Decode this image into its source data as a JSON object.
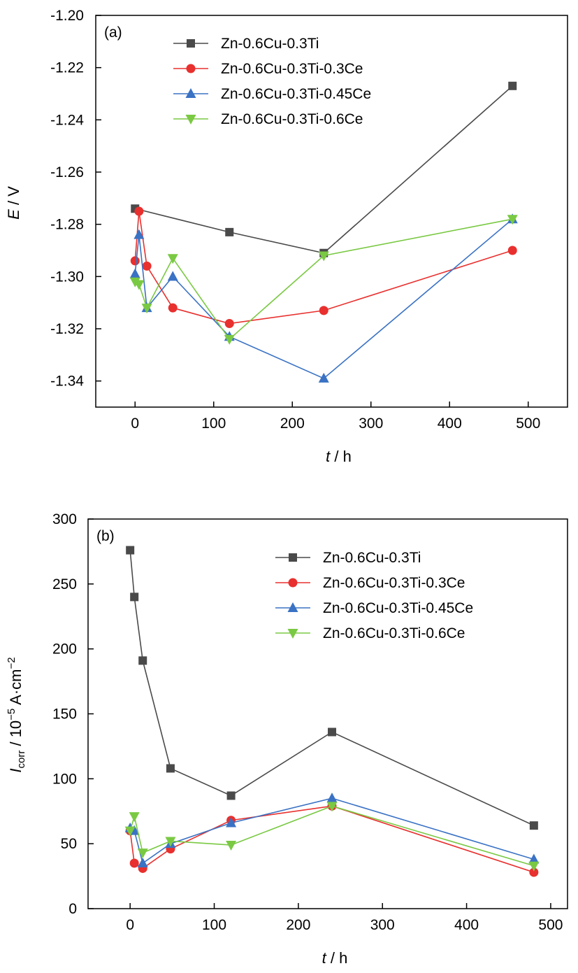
{
  "chart_data": [
    {
      "type": "line",
      "panel_label": "(a)",
      "xlabel_symbol": "t",
      "xlabel_unit": " / h",
      "ylabel_symbol": "E",
      "ylabel_unit": " / V",
      "xlim": [
        -50,
        550
      ],
      "ylim": [
        -1.35,
        -1.2
      ],
      "xticks": [
        0,
        100,
        200,
        300,
        400,
        500
      ],
      "xtick_labels": [
        "0",
        "100",
        "200",
        "300",
        "400",
        "500"
      ],
      "yticks": [
        -1.2,
        -1.22,
        -1.24,
        -1.26,
        -1.28,
        -1.3,
        -1.32,
        -1.34
      ],
      "ytick_labels": [
        "-1.20",
        "-1.22",
        "-1.24",
        "-1.26",
        "-1.28",
        "-1.30",
        "-1.32",
        "-1.34"
      ],
      "legend_position": "top-right",
      "grid": false,
      "series": [
        {
          "name": "Zn-0.6Cu-0.3Ti",
          "color": "#4a4a4a",
          "marker": "square",
          "x": [
            0,
            120,
            240,
            480
          ],
          "y": [
            -1.274,
            -1.283,
            -1.291,
            -1.227
          ]
        },
        {
          "name": "Zn-0.6Cu-0.3Ti-0.3Ce",
          "color": "#e8302e",
          "marker": "circle",
          "x": [
            0,
            5,
            15,
            48,
            120,
            240,
            480
          ],
          "y": [
            -1.294,
            -1.275,
            -1.296,
            -1.312,
            -1.318,
            -1.313,
            -1.29
          ]
        },
        {
          "name": "Zn-0.6Cu-0.3Ti-0.45Ce",
          "color": "#3a72c4",
          "marker": "triangle-up",
          "x": [
            0,
            5,
            15,
            48,
            120,
            240,
            480
          ],
          "y": [
            -1.299,
            -1.284,
            -1.312,
            -1.3,
            -1.323,
            -1.339,
            -1.278
          ]
        },
        {
          "name": "Zn-0.6Cu-0.3Ti-0.6Ce",
          "color": "#7ac943",
          "marker": "triangle-down",
          "x": [
            0,
            5,
            15,
            48,
            120,
            240,
            480
          ],
          "y": [
            -1.302,
            -1.303,
            -1.312,
            -1.293,
            -1.324,
            -1.292,
            -1.278
          ]
        }
      ]
    },
    {
      "type": "line",
      "panel_label": "(b)",
      "xlabel_symbol": "t",
      "xlabel_unit": " / h",
      "ylabel_symbol": "I",
      "ylabel_subscript": "corr",
      "ylabel_unit_prefix": " / 10",
      "ylabel_unit_exp": "−5",
      "ylabel_unit_mid": " A·cm",
      "ylabel_unit_exp2": "−2",
      "xlim": [
        -50,
        520
      ],
      "ylim": [
        0,
        300
      ],
      "xticks": [
        0,
        100,
        200,
        300,
        400,
        500
      ],
      "xtick_labels": [
        "0",
        "100",
        "200",
        "300",
        "400",
        "500"
      ],
      "yticks": [
        0,
        50,
        100,
        150,
        200,
        250,
        300
      ],
      "ytick_labels": [
        "0",
        "50",
        "100",
        "150",
        "200",
        "250",
        "300"
      ],
      "legend_position": "top-right",
      "grid": false,
      "series": [
        {
          "name": "Zn-0.6Cu-0.3Ti",
          "color": "#4a4a4a",
          "marker": "square",
          "x": [
            0,
            5,
            15,
            48,
            120,
            240,
            480
          ],
          "y": [
            276,
            240,
            191,
            108,
            87,
            136,
            64
          ]
        },
        {
          "name": "Zn-0.6Cu-0.3Ti-0.3Ce",
          "color": "#e8302e",
          "marker": "circle",
          "x": [
            0,
            5,
            15,
            48,
            120,
            240,
            480
          ],
          "y": [
            60,
            35,
            31,
            46,
            68,
            79,
            28
          ]
        },
        {
          "name": "Zn-0.6Cu-0.3Ti-0.45Ce",
          "color": "#3a72c4",
          "marker": "triangle-up",
          "x": [
            0,
            5,
            15,
            48,
            120,
            240,
            480
          ],
          "y": [
            62,
            60,
            35,
            50,
            66,
            85,
            38
          ]
        },
        {
          "name": "Zn-0.6Cu-0.3Ti-0.6Ce",
          "color": "#7ac943",
          "marker": "triangle-down",
          "x": [
            0,
            5,
            15,
            48,
            120,
            240,
            480
          ],
          "y": [
            60,
            71,
            43,
            52,
            49,
            79,
            33
          ]
        }
      ]
    }
  ]
}
